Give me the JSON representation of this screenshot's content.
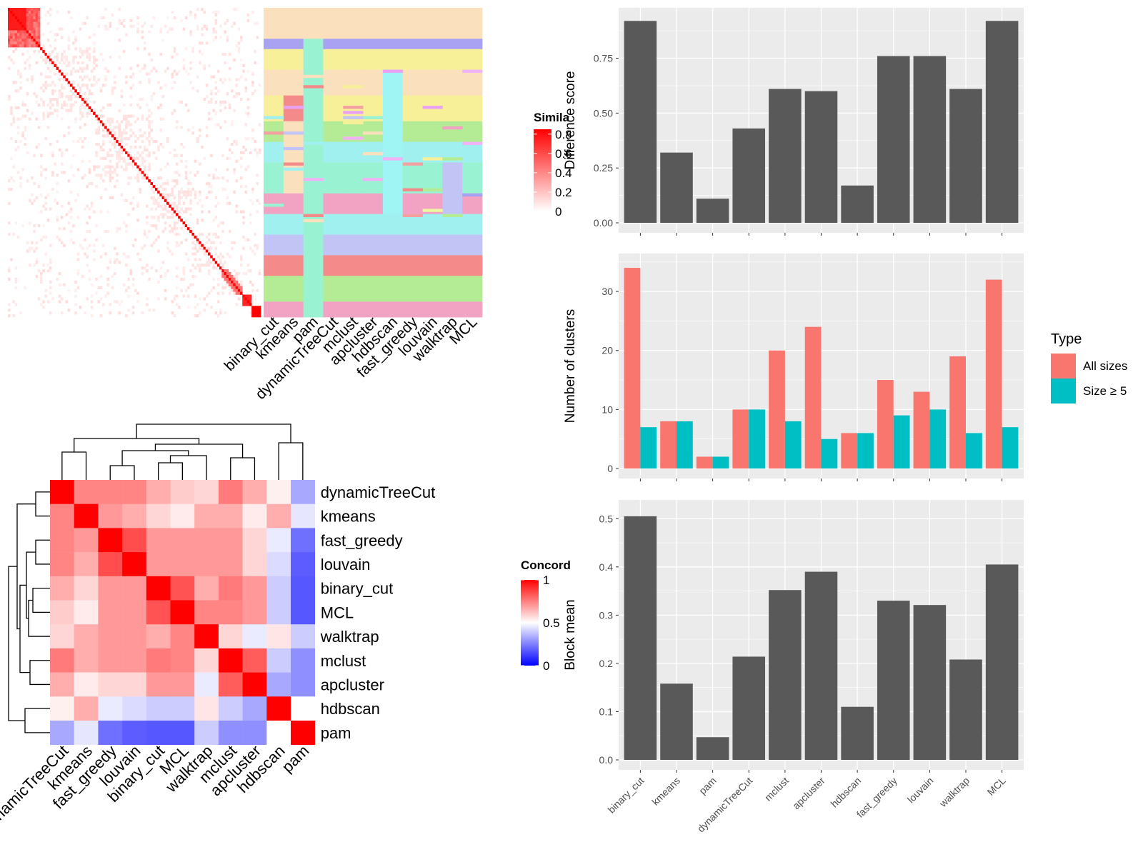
{
  "colors": {
    "panel_bg": "#ebebeb",
    "grid": "#ffffff",
    "bar_dark": "#595959",
    "all_sizes": "#f8766d",
    "size5": "#00bfc4",
    "sim_high": "#ff0000",
    "conc_low": "#0000ff"
  },
  "similarity_heatmap": {
    "legend_title": "Simila",
    "legend_ticks": [
      "0.8",
      "0.6",
      "0.4",
      "0.2",
      "0"
    ],
    "method_labels": [
      "binary_cut",
      "kmeans",
      "pam",
      "dynamicTreeCut",
      "mclust",
      "apcluster",
      "hdbscan",
      "fast_greedy",
      "louvain",
      "walktrap",
      "MCL"
    ]
  },
  "concordance_heatmap": {
    "legend_title": "Concord",
    "legend_ticks": [
      "1",
      "0.5",
      "0"
    ],
    "row_labels": [
      "dynamicTreeCut",
      "kmeans",
      "fast_greedy",
      "louvain",
      "binary_cut",
      "MCL",
      "walktrap",
      "mclust",
      "apcluster",
      "hdbscan",
      "pam"
    ],
    "col_labels": [
      "dynamicTreeCut",
      "kmeans",
      "fast_greedy",
      "louvain",
      "binary_cut",
      "MCL",
      "walktrap",
      "mclust",
      "apcluster",
      "hdbscan",
      "pam"
    ],
    "matrix": [
      [
        1.0,
        0.74,
        0.74,
        0.74,
        0.66,
        0.6,
        0.58,
        0.76,
        0.66,
        0.53,
        0.33
      ],
      [
        0.74,
        1.0,
        0.7,
        0.66,
        0.58,
        0.54,
        0.66,
        0.66,
        0.54,
        0.66,
        0.45
      ],
      [
        0.74,
        0.7,
        1.0,
        0.85,
        0.7,
        0.7,
        0.7,
        0.7,
        0.58,
        0.46,
        0.22
      ],
      [
        0.74,
        0.66,
        0.85,
        1.0,
        0.7,
        0.7,
        0.7,
        0.7,
        0.58,
        0.43,
        0.18
      ],
      [
        0.66,
        0.58,
        0.7,
        0.7,
        1.0,
        0.84,
        0.66,
        0.76,
        0.7,
        0.4,
        0.17
      ],
      [
        0.6,
        0.54,
        0.7,
        0.7,
        0.84,
        1.0,
        0.74,
        0.74,
        0.7,
        0.4,
        0.17
      ],
      [
        0.58,
        0.66,
        0.7,
        0.7,
        0.66,
        0.74,
        1.0,
        0.58,
        0.46,
        0.55,
        0.4
      ],
      [
        0.76,
        0.66,
        0.7,
        0.7,
        0.76,
        0.74,
        0.58,
        1.0,
        0.82,
        0.4,
        0.28
      ],
      [
        0.66,
        0.54,
        0.58,
        0.58,
        0.7,
        0.7,
        0.46,
        0.82,
        1.0,
        0.33,
        0.28
      ],
      [
        0.53,
        0.66,
        0.46,
        0.43,
        0.4,
        0.4,
        0.55,
        0.4,
        0.33,
        1.0,
        0.5
      ],
      [
        0.33,
        0.45,
        0.22,
        0.18,
        0.17,
        0.17,
        0.4,
        0.28,
        0.28,
        0.5,
        1.0
      ]
    ]
  },
  "chart_data": [
    {
      "type": "bar",
      "categories": [
        "binary_cut",
        "kmeans",
        "pam",
        "dynamicTreeCut",
        "mclust",
        "apcluster",
        "hdbscan",
        "fast_greedy",
        "louvain",
        "walktrap",
        "MCL"
      ],
      "values": [
        0.92,
        0.32,
        0.11,
        0.43,
        0.61,
        0.6,
        0.17,
        0.76,
        0.76,
        0.61,
        0.92
      ],
      "title": "",
      "xlabel": "",
      "ylabel": "Difference score",
      "ylim": [
        0,
        0.96
      ],
      "yticks": [
        0.0,
        0.25,
        0.5,
        0.75
      ],
      "ytick_labels": [
        "0.00",
        "0.25",
        "0.50",
        "0.75"
      ]
    },
    {
      "type": "bar",
      "categories": [
        "binary_cut",
        "kmeans",
        "pam",
        "dynamicTreeCut",
        "mclust",
        "apcluster",
        "hdbscan",
        "fast_greedy",
        "louvain",
        "walktrap",
        "MCL"
      ],
      "series": [
        {
          "name": "All sizes",
          "values": [
            34,
            8,
            2,
            10,
            20,
            24,
            6,
            15,
            13,
            19,
            32
          ]
        },
        {
          "name": "Size ≥ 5",
          "values": [
            7,
            8,
            2,
            10,
            8,
            5,
            6,
            9,
            10,
            6,
            7
          ]
        }
      ],
      "title": "",
      "xlabel": "",
      "ylabel": "Number of clusters",
      "ylim": [
        0,
        35.7
      ],
      "yticks": [
        0,
        10,
        20,
        30
      ],
      "ytick_labels": [
        "0",
        "10",
        "20",
        "30"
      ],
      "legend_title": "Type",
      "legend_position": "right"
    },
    {
      "type": "bar",
      "categories": [
        "binary_cut",
        "kmeans",
        "pam",
        "dynamicTreeCut",
        "mclust",
        "apcluster",
        "hdbscan",
        "fast_greedy",
        "louvain",
        "walktrap",
        "MCL"
      ],
      "values": [
        0.505,
        0.158,
        0.047,
        0.214,
        0.352,
        0.39,
        0.11,
        0.33,
        0.321,
        0.208,
        0.405
      ],
      "title": "",
      "xlabel": "",
      "ylabel": "Block mean",
      "ylim": [
        0,
        0.53
      ],
      "yticks": [
        0.0,
        0.1,
        0.2,
        0.3,
        0.4,
        0.5
      ],
      "ytick_labels": [
        "0.0",
        "0.1",
        "0.2",
        "0.3",
        "0.4",
        "0.5"
      ]
    }
  ]
}
